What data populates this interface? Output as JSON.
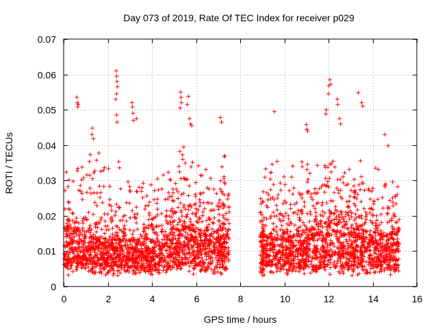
{
  "chart_data": {
    "type": "scatter",
    "title": "Day 073 of 2019, Rate Of TEC Index for receiver p029",
    "xlabel": "GPS time / hours",
    "ylabel": "ROTI / TECUs",
    "xlim": [
      0,
      16
    ],
    "ylim": [
      0,
      0.07
    ],
    "xticks": [
      "0",
      "2",
      "4",
      "6",
      "8",
      "10",
      "12",
      "14",
      "16"
    ],
    "yticks": [
      "0",
      "0.01",
      "0.02",
      "0.03",
      "0.04",
      "0.05",
      "0.06",
      "0.07"
    ],
    "grid": true,
    "marker": "+",
    "series": [
      {
        "name": "ROTI",
        "color": "#ff0000",
        "segments": [
          {
            "x_start": 0.0,
            "x_end": 7.5
          },
          {
            "x_start": 8.9,
            "x_end": 15.2
          }
        ],
        "envelope": [
          [
            0.0,
            0.018,
            0.034
          ],
          [
            0.3,
            0.016,
            0.03
          ],
          [
            0.6,
            0.015,
            0.032
          ],
          [
            1.0,
            0.014,
            0.036
          ],
          [
            1.4,
            0.013,
            0.038
          ],
          [
            1.8,
            0.013,
            0.035
          ],
          [
            2.2,
            0.012,
            0.03
          ],
          [
            2.5,
            0.013,
            0.034
          ],
          [
            2.9,
            0.013,
            0.031
          ],
          [
            3.3,
            0.012,
            0.029
          ],
          [
            3.7,
            0.012,
            0.028
          ],
          [
            4.1,
            0.012,
            0.03
          ],
          [
            4.5,
            0.013,
            0.031
          ],
          [
            4.9,
            0.015,
            0.036
          ],
          [
            5.3,
            0.017,
            0.04
          ],
          [
            5.7,
            0.016,
            0.038
          ],
          [
            6.1,
            0.015,
            0.036
          ],
          [
            6.5,
            0.014,
            0.034
          ],
          [
            6.9,
            0.015,
            0.036
          ],
          [
            7.2,
            0.016,
            0.038
          ],
          [
            7.5,
            0.015,
            0.034
          ],
          [
            8.9,
            0.014,
            0.032
          ],
          [
            9.3,
            0.014,
            0.035
          ],
          [
            9.7,
            0.013,
            0.034
          ],
          [
            10.1,
            0.013,
            0.032
          ],
          [
            10.5,
            0.014,
            0.034
          ],
          [
            10.9,
            0.015,
            0.036
          ],
          [
            11.3,
            0.016,
            0.035
          ],
          [
            11.7,
            0.017,
            0.038
          ],
          [
            12.1,
            0.018,
            0.04
          ],
          [
            12.5,
            0.017,
            0.038
          ],
          [
            12.9,
            0.016,
            0.036
          ],
          [
            13.3,
            0.016,
            0.037
          ],
          [
            13.7,
            0.015,
            0.035
          ],
          [
            14.1,
            0.014,
            0.032
          ],
          [
            14.5,
            0.014,
            0.031
          ],
          [
            14.9,
            0.015,
            0.032
          ],
          [
            15.2,
            0.015,
            0.03
          ]
        ],
        "outliers": [
          [
            0.6,
            0.0535
          ],
          [
            0.62,
            0.052
          ],
          [
            0.64,
            0.0508
          ],
          [
            0.66,
            0.0515
          ],
          [
            1.3,
            0.0448
          ],
          [
            1.28,
            0.043
          ],
          [
            1.35,
            0.0418
          ],
          [
            2.38,
            0.061
          ],
          [
            2.4,
            0.0595
          ],
          [
            2.42,
            0.058
          ],
          [
            2.44,
            0.0565
          ],
          [
            2.4,
            0.0545
          ],
          [
            2.36,
            0.053
          ],
          [
            2.4,
            0.0485
          ],
          [
            2.42,
            0.0465
          ],
          [
            3.1,
            0.052
          ],
          [
            3.12,
            0.0508
          ],
          [
            3.14,
            0.049
          ],
          [
            3.16,
            0.047
          ],
          [
            3.3,
            0.0475
          ],
          [
            5.3,
            0.055
          ],
          [
            5.32,
            0.0535
          ],
          [
            5.34,
            0.052
          ],
          [
            5.28,
            0.0505
          ],
          [
            5.6,
            0.0515
          ],
          [
            5.65,
            0.0538
          ],
          [
            5.7,
            0.0475
          ],
          [
            5.75,
            0.046
          ],
          [
            5.8,
            0.0455
          ],
          [
            7.1,
            0.0478
          ],
          [
            7.15,
            0.0465
          ],
          [
            9.55,
            0.0495
          ],
          [
            11.0,
            0.0458
          ],
          [
            11.02,
            0.0445
          ],
          [
            11.05,
            0.044
          ],
          [
            11.88,
            0.0488
          ],
          [
            11.9,
            0.05
          ],
          [
            12.0,
            0.0545
          ],
          [
            12.02,
            0.0568
          ],
          [
            12.06,
            0.0585
          ],
          [
            12.1,
            0.0572
          ],
          [
            12.4,
            0.053
          ],
          [
            12.42,
            0.0515
          ],
          [
            12.5,
            0.0475
          ],
          [
            12.55,
            0.046
          ],
          [
            13.35,
            0.0548
          ],
          [
            13.5,
            0.052
          ],
          [
            13.55,
            0.051
          ],
          [
            14.55,
            0.043
          ],
          [
            14.7,
            0.0398
          ]
        ]
      }
    ]
  }
}
